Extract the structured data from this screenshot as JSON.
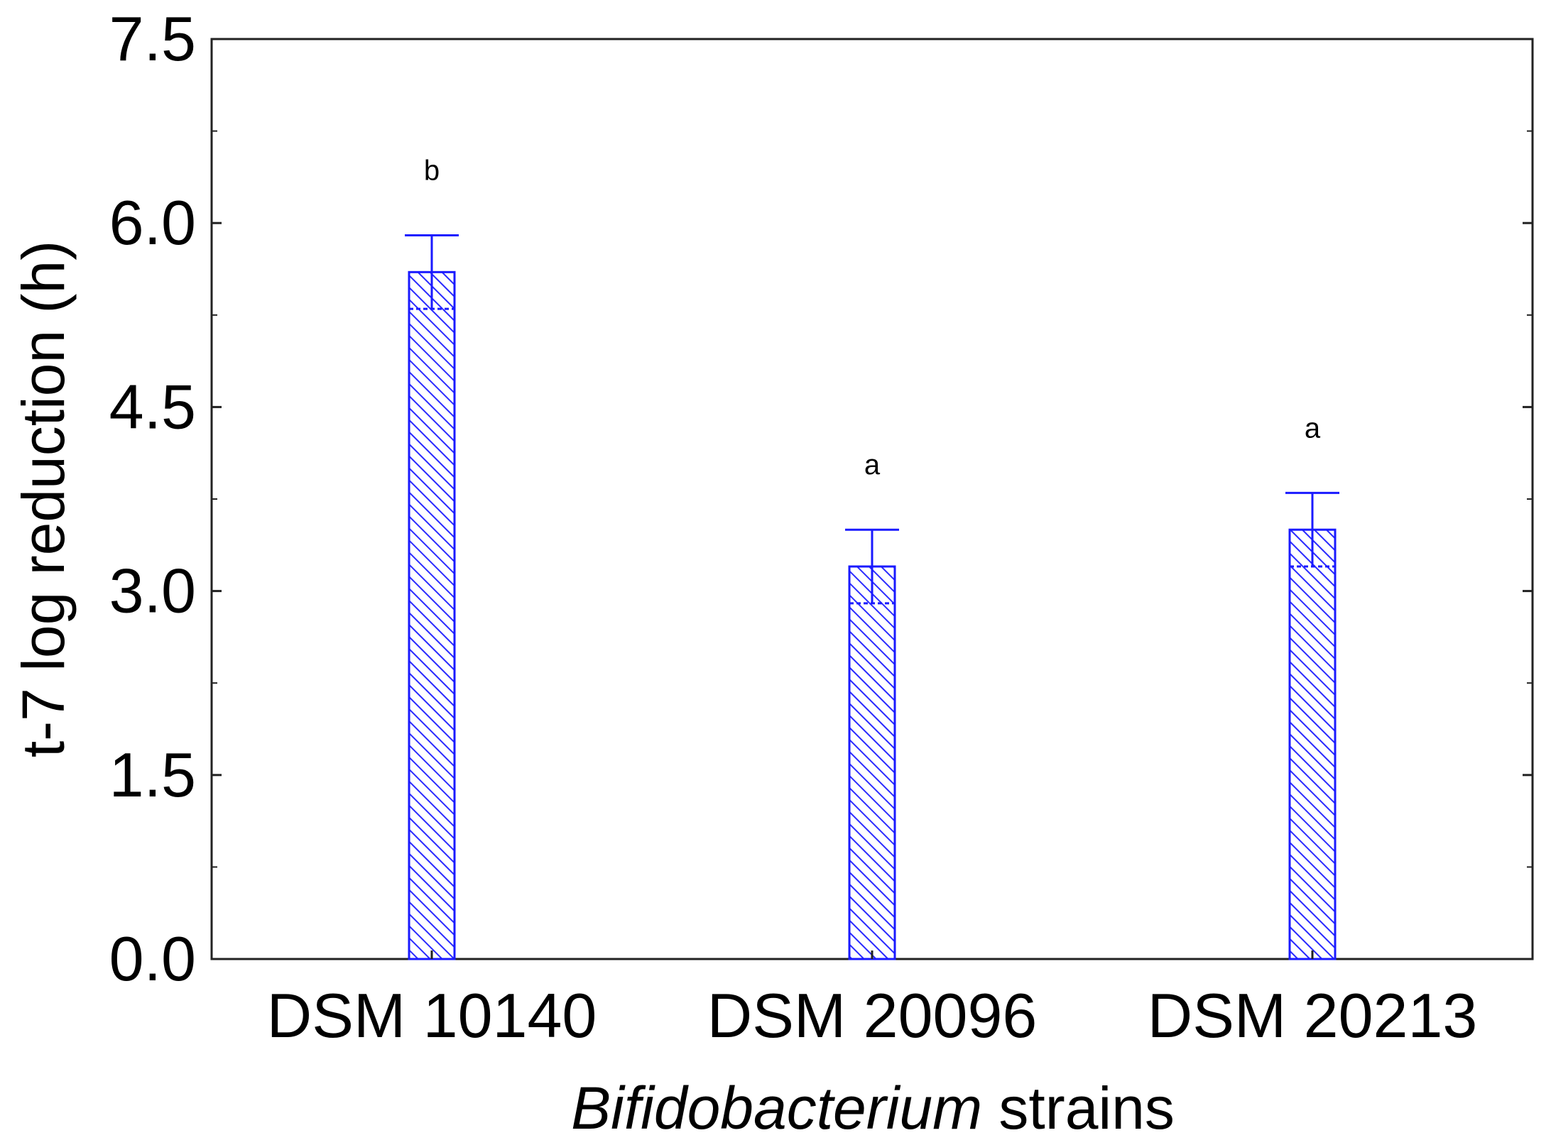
{
  "chart_data": {
    "type": "bar",
    "categories": [
      "DSM 10140",
      "DSM 20096",
      "DSM 20213"
    ],
    "values": [
      5.6,
      3.2,
      3.5
    ],
    "errors": [
      0.3,
      0.3,
      0.3
    ],
    "significance_labels": [
      "b",
      "a",
      "a"
    ],
    "ylabel": "t-7 log reduction (h)",
    "xlabel_italic": "Bifidobacterium",
    "xlabel_rest": " strains",
    "ylim": [
      0,
      7.5
    ],
    "yticks": [
      "0.0",
      "1.5",
      "3.0",
      "4.5",
      "6.0",
      "7.5"
    ],
    "ytick_values": [
      0,
      1.5,
      3,
      4.5,
      6,
      7.5
    ],
    "minor_tick_step": 0.75,
    "bar_color": "#1a1aff",
    "bar_pattern": "diagonal-hatch",
    "grid": false
  }
}
